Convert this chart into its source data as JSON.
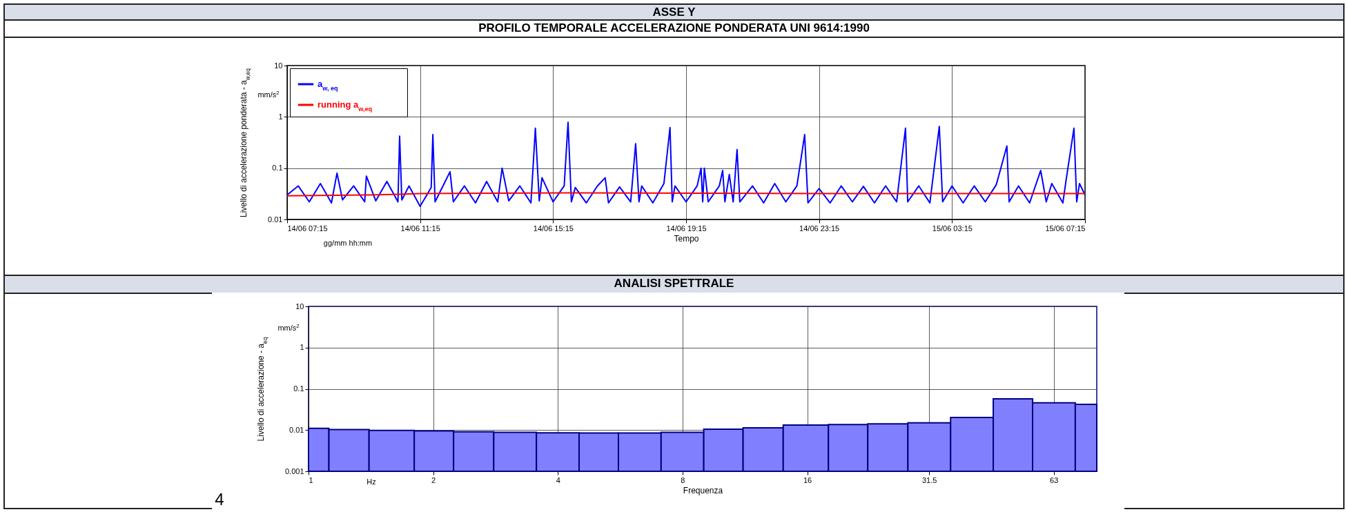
{
  "chart_data": [
    {
      "type": "line",
      "title": "ASSE Y",
      "subtitle": "PROFILO TEMPORALE ACCELERAZIONE PONDERATA UNI 9614:1990",
      "xlabel": "Tempo",
      "ylabel": "Livello di accelerazione ponderata - a$_{w,eq}$",
      "annotations": [
        "mm/s$^{2}$",
        "gg/mm hh:mm"
      ],
      "xlim": [
        "--06-14T07:15",
        "--06-15T07:15"
      ],
      "xticks": [
        {
          "value": "--06-14T07:15",
          "label": "14/06 07:15"
        },
        {
          "value": "--06-14T11:15",
          "label": "14/06 11:15"
        },
        {
          "value": "--06-14T15:15",
          "label": "14/06 15:15"
        },
        {
          "value": "--06-14T19:15",
          "label": "14/06 19:15"
        },
        {
          "value": "--06-14T23:15",
          "label": "14/06 23:15"
        },
        {
          "value": "--06-15T03:15",
          "label": "15/06 03:15"
        },
        {
          "value": "--06-15T07:15",
          "label": "15/06 07:15"
        }
      ],
      "ylim": [
        0.01,
        10
      ],
      "yticks": [
        0.01,
        0.1,
        1,
        10
      ],
      "log": true,
      "grid": true,
      "legend": "top left",
      "series": [
        {
          "name": "a$_{w, eq}$",
          "color": "#0000ff",
          "x": [
            "--06-14T07:15",
            "--06-14T07:35",
            "--06-14T07:55",
            "--06-14T08:15",
            "--06-14T08:35",
            "--06-14T08:45",
            "--06-14T08:55",
            "--06-14T09:15",
            "--06-14T09:35",
            "--06-14T09:38",
            "--06-14T09:55",
            "--06-14T10:15",
            "--06-14T10:35",
            "--06-14T10:38",
            "--06-14T10:42",
            "--06-14T10:55",
            "--06-14T11:15",
            "--06-14T11:35",
            "--06-14T11:38",
            "--06-14T11:42",
            "--06-14T12:09",
            "--06-14T12:15",
            "--06-14T12:35",
            "--06-14T12:55",
            "--06-14T13:15",
            "--06-14T13:35",
            "--06-14T13:43",
            "--06-14T13:55",
            "--06-14T14:15",
            "--06-14T14:35",
            "--06-14T14:43",
            "--06-14T14:50",
            "--06-14T14:55",
            "--06-14T15:15",
            "--06-14T15:35",
            "--06-14T15:42",
            "--06-14T15:48",
            "--06-14T15:55",
            "--06-14T16:15",
            "--06-14T16:35",
            "--06-14T16:49",
            "--06-14T16:55",
            "--06-14T17:15",
            "--06-14T17:35",
            "--06-14T17:44",
            "--06-14T17:50",
            "--06-14T17:55",
            "--06-14T18:15",
            "--06-14T18:35",
            "--06-14T18:46",
            "--06-14T18:50",
            "--06-14T18:55",
            "--06-14T19:15",
            "--06-14T19:35",
            "--06-14T19:42",
            "--06-14T19:45",
            "--06-14T19:48",
            "--06-14T19:55",
            "--06-14T20:15",
            "--06-14T20:21",
            "--06-14T20:25",
            "--06-14T20:33",
            "--06-14T20:40",
            "--06-14T20:47",
            "--06-14T20:52",
            "--06-14T21:15",
            "--06-14T21:35",
            "--06-14T21:55",
            "--06-14T22:15",
            "--06-14T22:35",
            "--06-14T22:49",
            "--06-14T22:55",
            "--06-14T23:15",
            "--06-14T23:35",
            "--06-14T23:55",
            "--06-15T00:15",
            "--06-15T00:35",
            "--06-15T00:55",
            "--06-15T01:15",
            "--06-15T01:35",
            "--06-15T01:51",
            "--06-15T01:55",
            "--06-15T02:15",
            "--06-15T02:35",
            "--06-15T02:52",
            "--06-15T02:58",
            "--06-15T03:15",
            "--06-15T03:35",
            "--06-15T03:55",
            "--06-15T04:15",
            "--06-15T04:35",
            "--06-15T04:54",
            "--06-15T04:58",
            "--06-15T05:15",
            "--06-15T05:35",
            "--06-15T05:55",
            "--06-15T06:05",
            "--06-15T06:15",
            "--06-15T06:35",
            "--06-15T06:41",
            "--06-15T06:55",
            "--06-15T07:00",
            "--06-15T07:05",
            "--06-15T07:15"
          ],
          "values": [
            0.03,
            0.045,
            0.022,
            0.05,
            0.021,
            0.08,
            0.024,
            0.045,
            0.022,
            0.07,
            0.023,
            0.055,
            0.022,
            0.42,
            0.024,
            0.045,
            0.018,
            0.042,
            0.45,
            0.022,
            0.085,
            0.022,
            0.045,
            0.021,
            0.055,
            0.022,
            0.1,
            0.023,
            0.045,
            0.021,
            0.6,
            0.023,
            0.065,
            0.022,
            0.045,
            0.78,
            0.022,
            0.042,
            0.021,
            0.045,
            0.065,
            0.021,
            0.043,
            0.022,
            0.3,
            0.022,
            0.045,
            0.021,
            0.05,
            0.62,
            0.022,
            0.045,
            0.022,
            0.045,
            0.1,
            0.022,
            0.1,
            0.022,
            0.045,
            0.09,
            0.022,
            0.075,
            0.022,
            0.23,
            0.022,
            0.045,
            0.021,
            0.05,
            0.022,
            0.045,
            0.45,
            0.021,
            0.04,
            0.021,
            0.045,
            0.022,
            0.044,
            0.021,
            0.045,
            0.022,
            0.6,
            0.022,
            0.045,
            0.021,
            0.65,
            0.022,
            0.045,
            0.021,
            0.045,
            0.022,
            0.048,
            0.27,
            0.022,
            0.045,
            0.021,
            0.09,
            0.022,
            0.05,
            0.021,
            0.06,
            0.6,
            0.022,
            0.05,
            0.03
          ]
        },
        {
          "name": "running a$_{w,eq}$",
          "color": "#ff0000",
          "x": [
            "--06-14T07:15",
            "--06-14T09:45",
            "--06-14T10:40",
            "--06-14T11:15",
            "--06-14T15:45",
            "--06-14T23:15",
            "--06-15T07:15"
          ],
          "values": [
            0.029,
            0.03,
            0.031,
            0.032,
            0.033,
            0.032,
            0.032
          ]
        }
      ]
    },
    {
      "type": "histogram",
      "title": "ANALISI SPETTRALE",
      "xlabel": "Frequenza",
      "ylabel": "Livello di accelerazione - a$_{eq}$",
      "annotations": [
        "mm/s$^{2}$",
        "Hz",
        "4"
      ],
      "bins": [
        1,
        1.12,
        1.4,
        1.8,
        2.24,
        2.8,
        3.55,
        4.5,
        5.6,
        7.1,
        9,
        11.2,
        14,
        18,
        22.4,
        28,
        35.5,
        45,
        56,
        71,
        80
      ],
      "values": [
        0.011,
        0.0103,
        0.0098,
        0.0095,
        0.0091,
        0.0088,
        0.0086,
        0.0085,
        0.0085,
        0.0088,
        0.0105,
        0.0113,
        0.0132,
        0.0136,
        0.0142,
        0.015,
        0.0202,
        0.057,
        0.046,
        0.042
      ],
      "color": "#8080ff",
      "xlim": [
        1,
        80
      ],
      "xticks": [
        1,
        2,
        4,
        8,
        16,
        31.5,
        63
      ],
      "ylim": [
        0.001,
        10
      ],
      "yticks": [
        0.001,
        0.01,
        0.1,
        1,
        10
      ],
      "log": "xy",
      "grid": true
    }
  ]
}
